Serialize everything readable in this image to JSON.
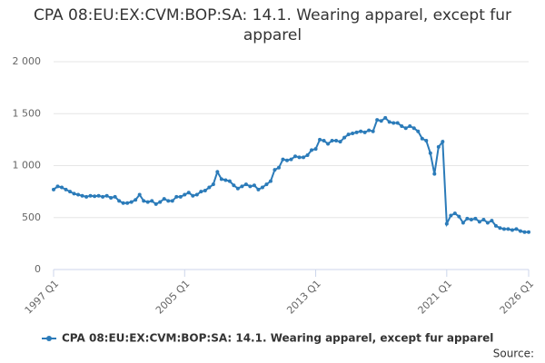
{
  "chart_data": {
    "type": "line",
    "title": "CPA 08:EU:EX:CVM:BOP:SA: 14.1. Wearing apparel, except fur apparel",
    "source": "Source:",
    "categories": [
      "1997 Q1",
      null,
      null,
      null,
      null,
      null,
      null,
      null,
      null,
      null,
      null,
      null,
      null,
      null,
      null,
      null,
      null,
      null,
      null,
      null,
      null,
      null,
      null,
      null,
      null,
      null,
      null,
      null,
      null,
      null,
      null,
      null,
      "2005 Q1",
      null,
      null,
      null,
      null,
      null,
      null,
      null,
      null,
      null,
      null,
      null,
      null,
      null,
      null,
      null,
      null,
      null,
      null,
      null,
      null,
      null,
      null,
      null,
      null,
      null,
      null,
      null,
      null,
      null,
      null,
      null,
      "2013 Q1",
      null,
      null,
      null,
      null,
      null,
      null,
      null,
      null,
      null,
      null,
      null,
      null,
      null,
      null,
      null,
      null,
      null,
      null,
      null,
      null,
      null,
      null,
      null,
      null,
      null,
      null,
      null,
      null,
      null,
      null,
      null,
      "2021 Q1",
      null,
      null,
      null,
      null,
      null,
      null,
      null,
      null,
      null,
      null,
      null,
      null,
      null,
      null,
      null,
      null,
      null,
      null,
      null,
      "2026 Q1"
    ],
    "series": [
      {
        "name": "CPA 08:EU:EX:CVM:BOP:SA: 14.1. Wearing apparel, except fur apparel",
        "color": "#2b7bb9",
        "values": [
          770,
          800,
          790,
          770,
          750,
          730,
          720,
          710,
          700,
          710,
          705,
          710,
          700,
          710,
          690,
          700,
          660,
          640,
          640,
          650,
          670,
          720,
          660,
          650,
          660,
          630,
          650,
          680,
          660,
          660,
          700,
          700,
          720,
          740,
          710,
          720,
          750,
          760,
          790,
          820,
          940,
          870,
          860,
          850,
          810,
          780,
          800,
          820,
          800,
          810,
          770,
          790,
          820,
          850,
          960,
          980,
          1060,
          1050,
          1060,
          1090,
          1080,
          1080,
          1100,
          1150,
          1160,
          1250,
          1240,
          1210,
          1240,
          1240,
          1230,
          1270,
          1300,
          1310,
          1320,
          1330,
          1320,
          1340,
          1330,
          1440,
          1430,
          1460,
          1420,
          1410,
          1410,
          1380,
          1360,
          1380,
          1360,
          1330,
          1260,
          1240,
          1120,
          920,
          1180,
          1230,
          440,
          520,
          540,
          510,
          450,
          490,
          480,
          490,
          460,
          480,
          450,
          470,
          420,
          400,
          390,
          390,
          380,
          390,
          370,
          360,
          360
        ]
      }
    ],
    "ylim": [
      0,
      2000
    ],
    "yticks": [
      0,
      500,
      {
        "value": 1000,
        "label": "1 000"
      },
      {
        "value": 1500,
        "label": "1 500"
      },
      {
        "value": 2000,
        "label": "2 000"
      }
    ],
    "grid": true,
    "legend": "bottom"
  }
}
